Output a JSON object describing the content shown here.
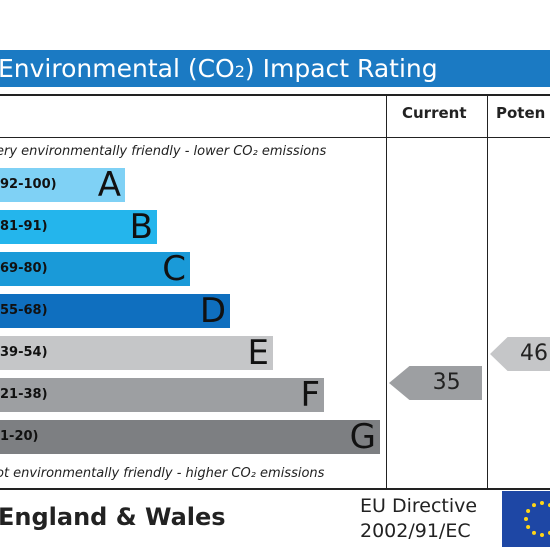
{
  "title": {
    "main": "Environmental (CO",
    "sub": "2",
    "rest": ") Impact Rating"
  },
  "columns": {
    "current": "Current",
    "potential": "Poten"
  },
  "top_note": "ery environmentally friendly - lower CO₂ emissions",
  "bottom_note": "ot environmentally friendly - higher CO₂ emissions",
  "bands": [
    {
      "range": "92-100)",
      "letter": "A",
      "color": "#7fd1f5"
    },
    {
      "range": "81-91)",
      "letter": "B",
      "color": "#24b5ec"
    },
    {
      "range": "69-80)",
      "letter": "C",
      "color": "#1a9ad8"
    },
    {
      "range": "55-68)",
      "letter": "D",
      "color": "#0f6fbf"
    },
    {
      "range": "39-54)",
      "letter": "E",
      "color": "#c5c6c8"
    },
    {
      "range": "21-38)",
      "letter": "F",
      "color": "#9d9fa2"
    },
    {
      "range": "1-20)",
      "letter": "G",
      "color": "#7d7f82"
    }
  ],
  "current_rating": {
    "value": "35",
    "color": "#9d9fa2"
  },
  "potential_rating": {
    "value": "46",
    "color": "#c5c6c8"
  },
  "footer": {
    "country": "England & Wales",
    "directive_line1": "EU Directive",
    "directive_line2": "2002/91/EC"
  },
  "icons": {
    "flag": "eu-flag-icon"
  }
}
